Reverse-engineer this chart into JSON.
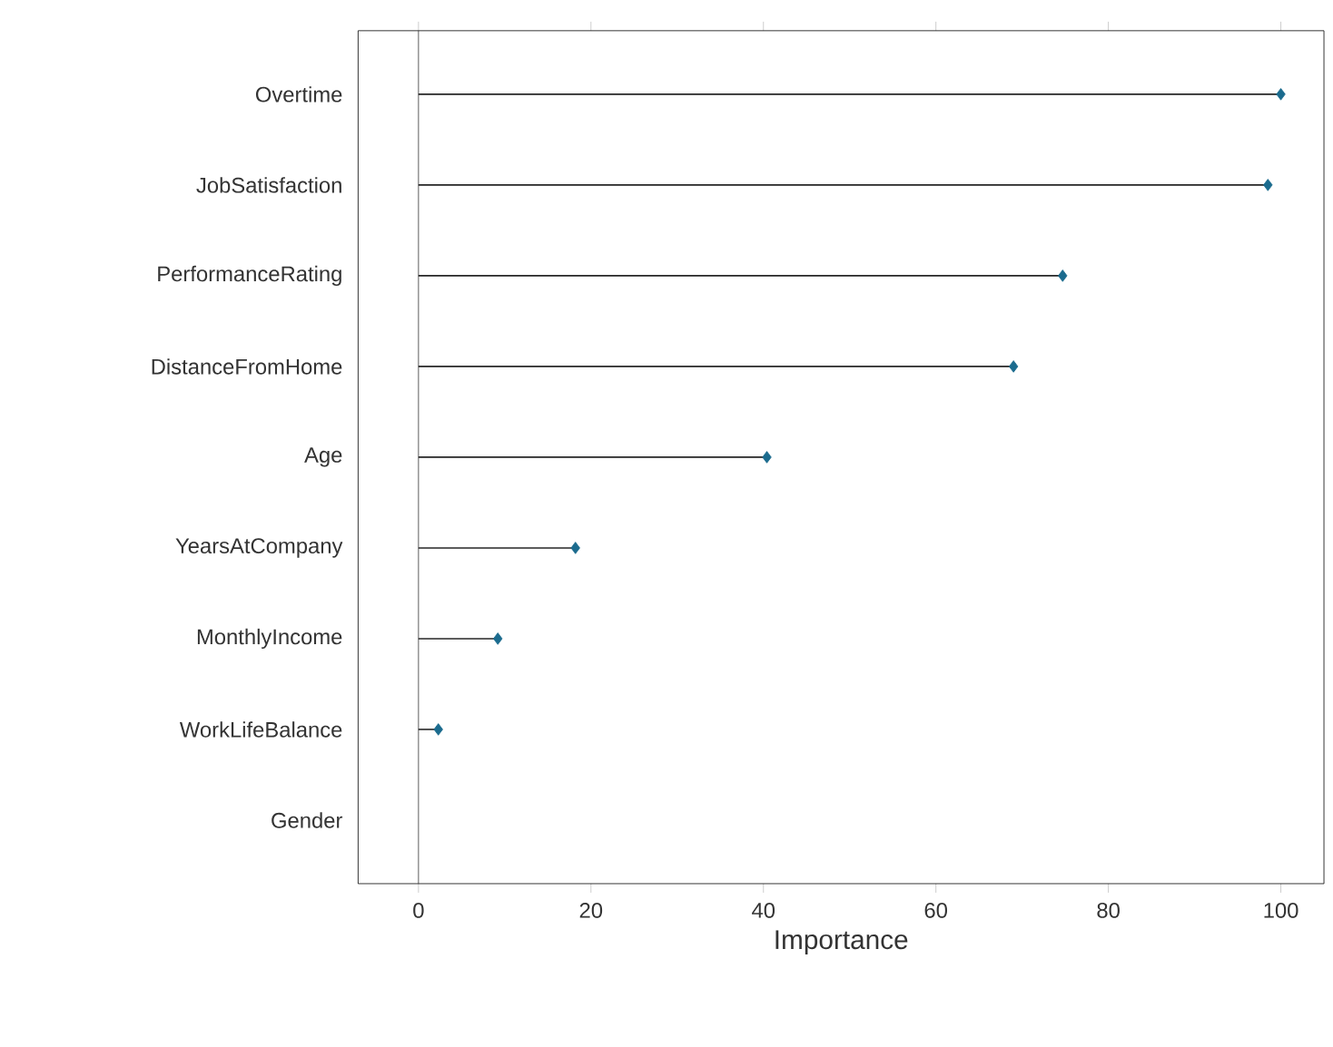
{
  "chart_data": {
    "type": "lollipop",
    "orientation": "horizontal",
    "xlabel": "Importance",
    "categories": [
      "Overtime",
      "JobSatisfaction",
      "PerformanceRating",
      "DistanceFromHome",
      "Age",
      "YearsAtCompany",
      "MonthlyIncome",
      "WorkLifeBalance",
      "Gender"
    ],
    "values": [
      100,
      98.5,
      74.7,
      69,
      40.4,
      18.2,
      9.2,
      2.3,
      null
    ],
    "color": "#1b6b8e",
    "marker": "diamond",
    "xlim": [
      -7,
      105
    ],
    "xticks": [
      0,
      20,
      40,
      60,
      80,
      100
    ]
  }
}
